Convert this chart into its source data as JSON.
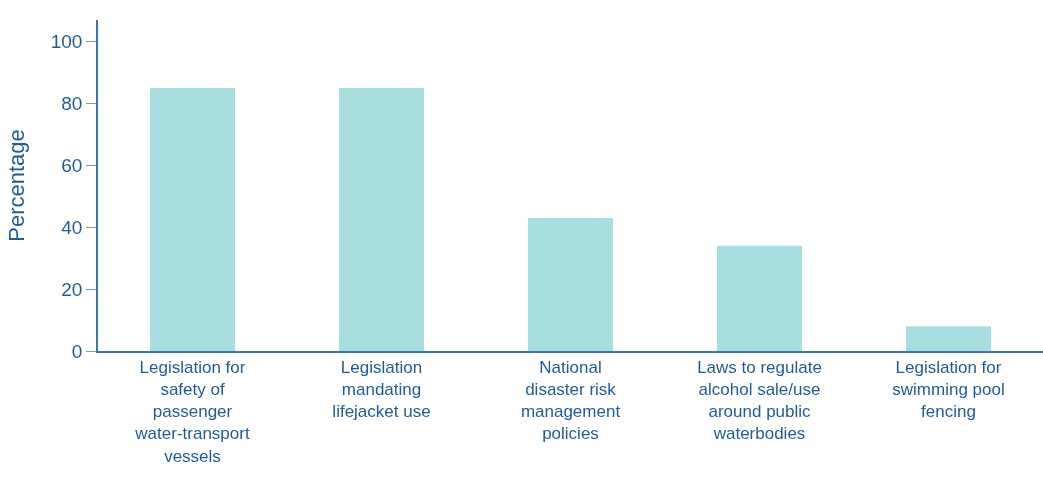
{
  "chart_data": {
    "type": "bar",
    "ylabel": "Percentage",
    "categories": [
      "Legislation for safety of passenger water-transport vessels",
      "Legislation mandating lifejacket use",
      "National disaster risk management policies",
      "Laws to regulate alcohol sale/use around public waterbodies",
      "Legislation for swimming pool fencing"
    ],
    "values": [
      85,
      85,
      43,
      34,
      8
    ],
    "color": "#a8dedd",
    "ylim": [
      0,
      107
    ],
    "yticks": [
      0,
      20,
      40,
      60,
      80,
      100
    ],
    "grid": false,
    "legend": false
  }
}
